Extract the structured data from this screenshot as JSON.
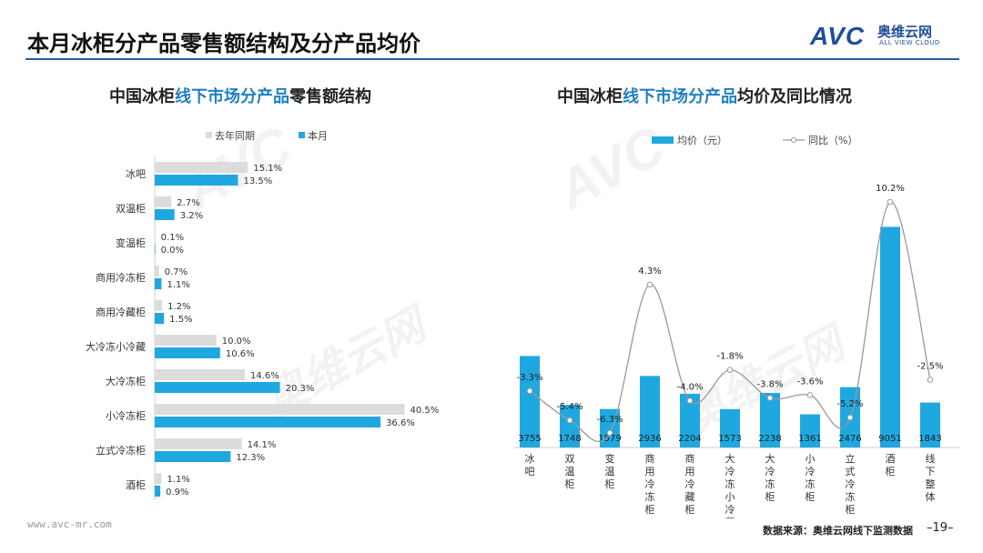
{
  "page": {
    "title": "本月冰柜分产品零售额结构及分产品均价",
    "logo_brand": "AVC",
    "logo_cn": "奥维云网",
    "logo_en": "ALL VIEW CLOUD",
    "site_url": "www.avc-mr.com",
    "source": "数据来源：奥维云网线下监测数据",
    "page_number": "–19–"
  },
  "colors": {
    "current": "#1fa8e0",
    "previous": "#dcdcdc",
    "line": "#999999",
    "accent": "#1f7fc0",
    "brand": "#1f4f9a"
  },
  "left_title": {
    "prefix": "中国冰柜",
    "highlight": "线下市场分产品",
    "suffix": "零售额结构"
  },
  "right_title": {
    "prefix": "中国冰柜",
    "highlight": "线下市场分产品",
    "suffix": "均价及同比情况"
  },
  "chart_data": [
    {
      "type": "bar",
      "orientation": "horizontal",
      "categories": [
        "冰吧",
        "双温柜",
        "变温柜",
        "商用冷冻柜",
        "商用冷藏柜",
        "大冷冻小冷藏",
        "大冷冻柜",
        "小冷冻柜",
        "立式冷冻柜",
        "酒柜"
      ],
      "series": [
        {
          "name": "去年同期",
          "values": [
            15.1,
            2.7,
            0.1,
            0.7,
            1.2,
            10.0,
            14.6,
            40.5,
            14.1,
            1.1
          ],
          "labels": [
            "15.1%",
            "2.7%",
            "0.1%",
            "0.7%",
            "1.2%",
            "10.0%",
            "14.6%",
            "40.5%",
            "14.1%",
            "1.1%"
          ]
        },
        {
          "name": "本月",
          "values": [
            13.5,
            3.2,
            0.0,
            1.1,
            1.5,
            10.6,
            20.3,
            36.6,
            12.3,
            0.9
          ],
          "labels": [
            "13.5%",
            "3.2%",
            "0.0%",
            "1.1%",
            "1.5%",
            "10.6%",
            "20.3%",
            "36.6%",
            "12.3%",
            "0.9%"
          ]
        }
      ],
      "xlim": [
        0,
        45
      ],
      "legend": "top"
    },
    {
      "type": "bar+line",
      "categories": [
        "冰吧",
        "双温柜",
        "变温柜",
        "商用冷冻柜",
        "商用冷藏柜",
        "大冷冻小冷藏",
        "大冷冻柜",
        "小冷冻柜",
        "立式冷冻柜",
        "酒柜",
        "线下整体"
      ],
      "series": [
        {
          "name": "均价（元）",
          "type": "bar",
          "values": [
            3755,
            1748,
            1579,
            2936,
            2204,
            1573,
            2238,
            1361,
            2476,
            9051,
            1843
          ],
          "labels": [
            "3755",
            "1748",
            "1579",
            "2936",
            "2204",
            "1573",
            "2238",
            "1361",
            "2476",
            "9051",
            "1843"
          ]
        },
        {
          "name": "同比（%）",
          "type": "line",
          "values": [
            -3.3,
            -5.4,
            -6.3,
            4.3,
            -4.0,
            -1.8,
            -3.8,
            -3.6,
            -5.2,
            10.2,
            -2.5
          ],
          "labels": [
            "-3.3%",
            "-5.4%",
            "-6.3%",
            "4.3%",
            "-4.0%",
            "-1.8%",
            "-3.8%",
            "-3.6%",
            "-5.2%",
            "10.2%",
            "-2.5%"
          ]
        }
      ],
      "ylim_bar": [
        0,
        10000
      ],
      "ylim_line": [
        -8,
        11
      ],
      "legend": "top"
    }
  ]
}
